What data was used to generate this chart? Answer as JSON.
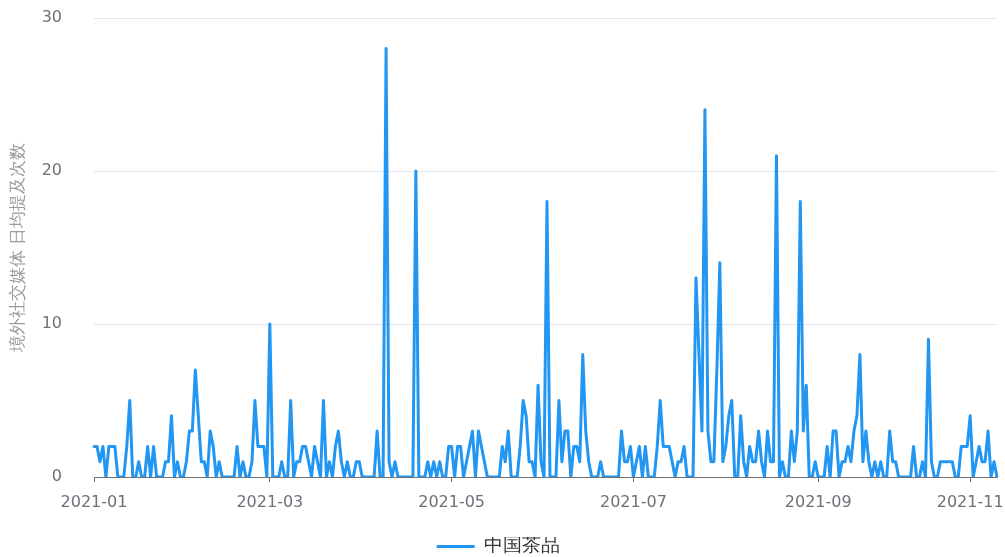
{
  "chart_data": {
    "type": "line",
    "ylabel": "境外社交媒体 日均提及次数",
    "categories": [
      "2021-01",
      null,
      null,
      null,
      null,
      null,
      null,
      null,
      null,
      null,
      null,
      null,
      null,
      null,
      null,
      null,
      null,
      null,
      null,
      null,
      null,
      null,
      null,
      null,
      null,
      null,
      null,
      null,
      null,
      null,
      null,
      null,
      null,
      null,
      null,
      null,
      null,
      null,
      null,
      null,
      null,
      null,
      null,
      null,
      null,
      null,
      null,
      null,
      null,
      null,
      null,
      null,
      null,
      null,
      null,
      null,
      null,
      null,
      null,
      "2021-03",
      null,
      null,
      null,
      null,
      null,
      null,
      null,
      null,
      null,
      null,
      null,
      null,
      null,
      null,
      null,
      null,
      null,
      null,
      null,
      null,
      null,
      null,
      null,
      null,
      null,
      null,
      null,
      null,
      null,
      null,
      null,
      null,
      null,
      null,
      null,
      null,
      null,
      null,
      null,
      null,
      null,
      null,
      null,
      null,
      null,
      null,
      null,
      null,
      null,
      null,
      null,
      null,
      null,
      null,
      null,
      null,
      null,
      null,
      null,
      null,
      "2021-05",
      null,
      null,
      null,
      null,
      null,
      null,
      null,
      null,
      null,
      null,
      null,
      null,
      null,
      null,
      null,
      null,
      null,
      null,
      null,
      null,
      null,
      null,
      null,
      null,
      null,
      null,
      null,
      null,
      null,
      null,
      null,
      null,
      null,
      null,
      null,
      null,
      null,
      null,
      null,
      null,
      null,
      null,
      null,
      null,
      null,
      null,
      null,
      null,
      null,
      null,
      null,
      null,
      null,
      null,
      null,
      null,
      null,
      null,
      null,
      null,
      "2021-07",
      null,
      null,
      null,
      null,
      null,
      null,
      null,
      null,
      null,
      null,
      null,
      null,
      null,
      null,
      null,
      null,
      null,
      null,
      null,
      null,
      null,
      null,
      null,
      null,
      null,
      null,
      null,
      null,
      null,
      null,
      null,
      null,
      null,
      null,
      null,
      null,
      null,
      null,
      null,
      null,
      null,
      null,
      null,
      null,
      null,
      null,
      null,
      null,
      null,
      null,
      null,
      null,
      null,
      null,
      null,
      null,
      null,
      null,
      null,
      null,
      null,
      "2021-09",
      null,
      null,
      null,
      null,
      null,
      null,
      null,
      null,
      null,
      null,
      null,
      null,
      null,
      null,
      null,
      null,
      null,
      null,
      null,
      null,
      null,
      null,
      null,
      null,
      null,
      null,
      null,
      null,
      null,
      null,
      null,
      null,
      null,
      null,
      null,
      null,
      null,
      null,
      null,
      null,
      null,
      null,
      null,
      null,
      null,
      null,
      null,
      null,
      null,
      null,
      "2021-11",
      null,
      null,
      null,
      null,
      null,
      null,
      null,
      null,
      null
    ],
    "series": [
      {
        "name": "中国茶品",
        "color": "#2196f3",
        "values": [
          2,
          2,
          1,
          2,
          0,
          2,
          2,
          2,
          0,
          0,
          0,
          2,
          5,
          0,
          0,
          1,
          0,
          0,
          2,
          0,
          2,
          0,
          0,
          0,
          1,
          1,
          4,
          0,
          1,
          0,
          0,
          1,
          3,
          3,
          7,
          4,
          1,
          1,
          0,
          3,
          2,
          0,
          1,
          0,
          0,
          0,
          0,
          0,
          2,
          0,
          1,
          0,
          0,
          1,
          5,
          2,
          2,
          2,
          0,
          10,
          0,
          0,
          0,
          1,
          0,
          0,
          5,
          0,
          1,
          1,
          2,
          2,
          1,
          0,
          2,
          1,
          0,
          5,
          0,
          1,
          0,
          2,
          3,
          1,
          0,
          1,
          0,
          0,
          1,
          1,
          0,
          0,
          0,
          0,
          0,
          3,
          0,
          0,
          28,
          1,
          0,
          1,
          0,
          0,
          0,
          0,
          0,
          0,
          20,
          0,
          0,
          0,
          1,
          0,
          1,
          0,
          1,
          0,
          0,
          2,
          2,
          0,
          2,
          2,
          0,
          1,
          2,
          3,
          0,
          3,
          2,
          1,
          0,
          0,
          0,
          0,
          0,
          2,
          1,
          3,
          0,
          0,
          0,
          2,
          5,
          4,
          1,
          1,
          0,
          6,
          1,
          0,
          18,
          0,
          0,
          0,
          5,
          1,
          3,
          3,
          0,
          2,
          2,
          1,
          8,
          3,
          1,
          0,
          0,
          0,
          1,
          0,
          0,
          0,
          0,
          0,
          0,
          3,
          1,
          1,
          2,
          0,
          1,
          2,
          0,
          2,
          0,
          0,
          0,
          2,
          5,
          2,
          2,
          2,
          1,
          0,
          1,
          1,
          2,
          0,
          0,
          0,
          13,
          8,
          3,
          24,
          3,
          1,
          1,
          7,
          14,
          1,
          2,
          4,
          5,
          0,
          0,
          4,
          1,
          0,
          2,
          1,
          1,
          3,
          1,
          0,
          3,
          1,
          1,
          21,
          0,
          1,
          0,
          0,
          3,
          1,
          3,
          18,
          3,
          6,
          0,
          0,
          1,
          0,
          0,
          0,
          2,
          0,
          3,
          3,
          0,
          1,
          1,
          2,
          1,
          3,
          4,
          8,
          1,
          3,
          1,
          0,
          1,
          0,
          1,
          0,
          0,
          3,
          1,
          1,
          0,
          0,
          0,
          0,
          0,
          2,
          0,
          0,
          1,
          0,
          9,
          1,
          0,
          0,
          1,
          1,
          1,
          1,
          1,
          0,
          0,
          2,
          2,
          2,
          4,
          0,
          1,
          2,
          1,
          1,
          3,
          0,
          1,
          0
        ]
      }
    ],
    "ylim": [
      0,
      30
    ],
    "yticks": [
      0,
      10,
      20,
      30
    ],
    "grid": "y",
    "legend": "bottom",
    "marker": "none",
    "line_style": "solid"
  }
}
